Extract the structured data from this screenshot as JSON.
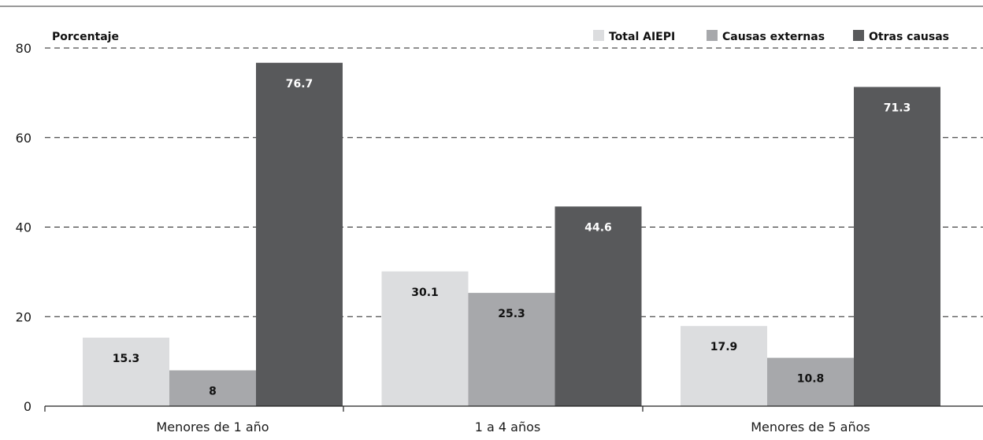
{
  "chart_data": {
    "type": "bar",
    "categories": [
      "Menores de 1 año",
      "1 a 4 años",
      "Menores de 5 años"
    ],
    "series": [
      {
        "name": "Total AIEPI",
        "color": "#dcdddf",
        "label_color": "#111111",
        "values": [
          15.3,
          30.1,
          17.9
        ]
      },
      {
        "name": "Causas externas",
        "color": "#a7a8ab",
        "label_color": "#111111",
        "values": [
          8,
          25.3,
          10.8
        ]
      },
      {
        "name": "Otras causas",
        "color": "#58595b",
        "label_color": "#ffffff",
        "values": [
          76.7,
          44.6,
          71.3
        ]
      }
    ],
    "data_labels": [
      [
        "15.3",
        "30.1",
        "17.9"
      ],
      [
        "8",
        "25.3",
        "10.8"
      ],
      [
        "76.7",
        "44.6",
        "71.3"
      ]
    ],
    "title": "",
    "xlabel": "",
    "ylabel": "Porcentaje",
    "ylim": [
      0,
      80
    ],
    "yticks": [
      0,
      20,
      40,
      60,
      80
    ],
    "ytick_labels": [
      "0",
      "20",
      "40",
      "60",
      "80"
    ],
    "grid": "dashed horizontal",
    "legend_position": "top-right"
  }
}
